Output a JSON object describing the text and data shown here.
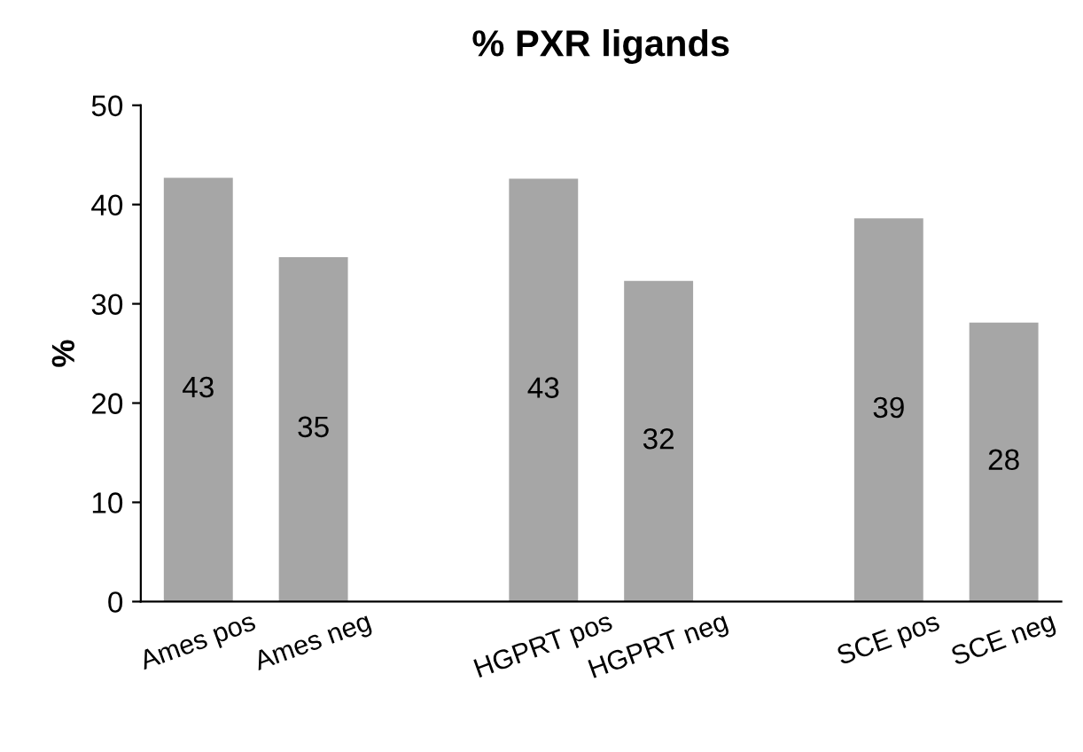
{
  "chart_data": {
    "type": "bar",
    "title": "% PXR ligands",
    "ylabel": "%",
    "categories": [
      "Ames pos",
      "Ames neg",
      null,
      "HGPRT pos",
      "HGPRT neg",
      null,
      "SCE pos",
      "SCE neg"
    ],
    "values": [
      42.7,
      34.7,
      null,
      42.6,
      32.3,
      null,
      38.6,
      28.1
    ],
    "value_labels": [
      "43",
      "35",
      null,
      "43",
      "32",
      null,
      "39",
      "28"
    ],
    "color": "#a6a6a6",
    "ylim": [
      0,
      50
    ],
    "yticks": [
      0,
      10,
      20,
      30,
      40,
      50
    ],
    "grid": false,
    "legend": false
  }
}
